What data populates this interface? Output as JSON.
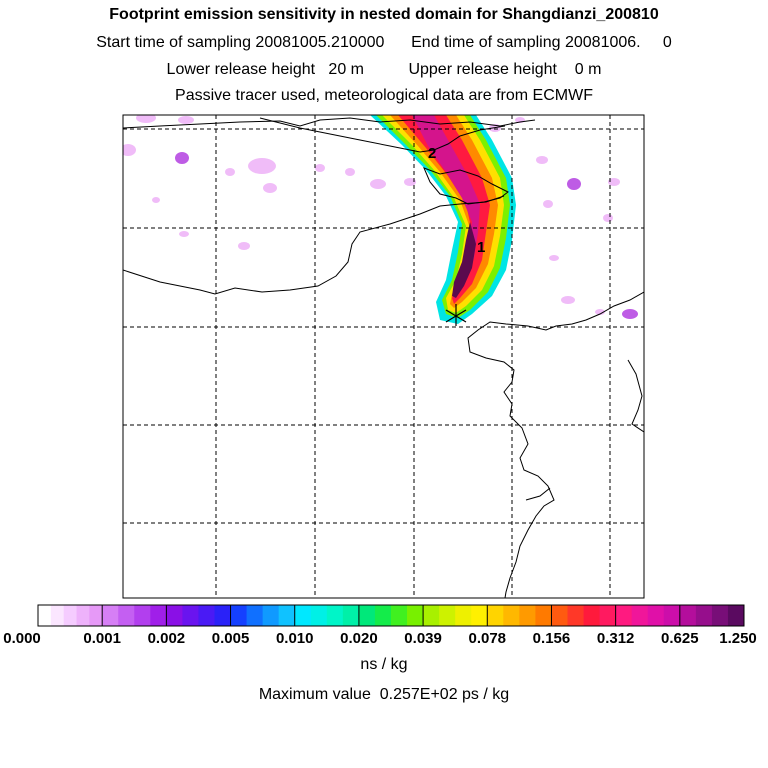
{
  "header": {
    "title": "Footprint emission sensitivity in nested domain for Shangdianzi_200810",
    "time_line": "Start time of sampling 20081005.210000      End time of sampling 20081006.     0",
    "height_line": "Lower release height   20 m          Upper release height    0 m",
    "tracer_line": "Passive tracer used, meteorological data are from ECMWF"
  },
  "map": {
    "plume_labels": [
      "2",
      "1"
    ],
    "colors": {
      "plume_outer": "#00e5e5",
      "plume_green": "#7cf000",
      "plume_yellow": "#ffe000",
      "plume_orange": "#ff8a00",
      "plume_red": "#ff1a40",
      "plume_magenta": "#d4148c",
      "plume_core": "#5a0a4e",
      "sparse_patch": "#e9a0f5",
      "sparse_patch_dark": "#b340e0"
    }
  },
  "colorbar": {
    "tick_labels": [
      "0.000",
      "0.001",
      "0.002",
      "0.005",
      "0.010",
      "0.020",
      "0.039",
      "0.078",
      "0.156",
      "0.312",
      "0.625",
      "1.250"
    ],
    "segment_colors": [
      [
        "#ffffff",
        "#fbe6ff",
        "#f5ccff",
        "#eeb2fb",
        "#e699f7"
      ],
      [
        "#d67ff5",
        "#c45ff2",
        "#b23fee",
        "#a01fe9"
      ],
      [
        "#8a10e6",
        "#6a14ef",
        "#4a1af5",
        "#2a22f8"
      ],
      [
        "#1540ff",
        "#1070ff",
        "#109aff",
        "#10c2ff"
      ],
      [
        "#00e8ff",
        "#00f0e6",
        "#00f5c8",
        "#00f0a8"
      ],
      [
        "#00e87a",
        "#14ec4a",
        "#40f020",
        "#78f000"
      ],
      [
        "#a8f000",
        "#cdf200",
        "#eef000",
        "#fff000"
      ],
      [
        "#ffd400",
        "#ffb800",
        "#ff9a00",
        "#ff7a00"
      ],
      [
        "#ff5a10",
        "#ff3828",
        "#ff1a3c",
        "#ff1a60"
      ],
      [
        "#ff1a80",
        "#f0169a",
        "#e010a8",
        "#cc0eaa"
      ],
      [
        "#b40e9c",
        "#960e8c",
        "#780e78",
        "#5a0a60"
      ]
    ],
    "unit": "ns / kg",
    "max_value": "Maximum value  0.257E+02 ps / kg"
  }
}
